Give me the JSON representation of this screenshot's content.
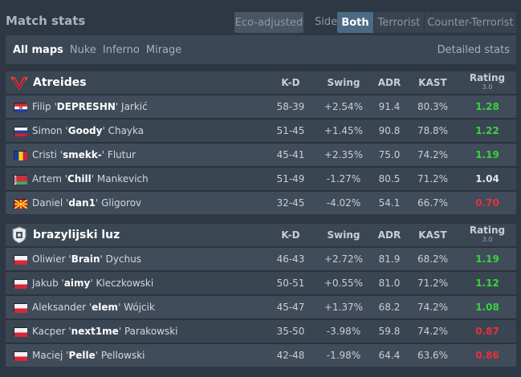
{
  "header": {
    "title": "Match stats",
    "eco_label": "Eco-adjusted",
    "side_label": "Side",
    "side_options": [
      "Both",
      "Terrorist",
      "Counter-Terrorist"
    ],
    "side_selected": "Both"
  },
  "maps": {
    "tabs": [
      "All maps",
      "Nuke",
      "Inferno",
      "Mirage"
    ],
    "selected": "All maps",
    "detailed_label": "Detailed stats"
  },
  "columns": {
    "kd": "K-D",
    "swing": "Swing",
    "adr": "ADR",
    "kast": "KAST",
    "rating": "Rating",
    "rating_version": "3.0"
  },
  "colors": {
    "positive": "#39c23b",
    "negative": "#e8404a",
    "active_tab": "#4d6a85"
  },
  "teams": [
    {
      "name": "Atreides",
      "logo": "atreides-logo",
      "players": [
        {
          "first": "Filip",
          "nick": "DEPRESHN",
          "last": "Jarkić",
          "flag": "croatia",
          "kd": "58-39",
          "swing": "+2.54%",
          "adr": "91.4",
          "kast": "80.3%",
          "rating": "1.28"
        },
        {
          "first": "Simon",
          "nick": "Goody",
          "last": "Chayka",
          "flag": "russia",
          "kd": "51-45",
          "swing": "+1.45%",
          "adr": "90.8",
          "kast": "78.8%",
          "rating": "1.22"
        },
        {
          "first": "Cristi",
          "nick": "smekk-",
          "last": "Flutur",
          "flag": "romania",
          "kd": "45-41",
          "swing": "+2.35%",
          "adr": "75.0",
          "kast": "74.2%",
          "rating": "1.19"
        },
        {
          "first": "Artem",
          "nick": "Chill",
          "last": "Mankevich",
          "flag": "belarus",
          "kd": "51-49",
          "swing": "-1.27%",
          "adr": "80.5",
          "kast": "71.2%",
          "rating": "1.04"
        },
        {
          "first": "Daniel",
          "nick": "dan1",
          "last": "Gligorov",
          "flag": "macedonia",
          "kd": "32-45",
          "swing": "-4.02%",
          "adr": "54.1",
          "kast": "66.7%",
          "rating": "0.70"
        }
      ]
    },
    {
      "name": "brazylijski luz",
      "logo": "brazylijski-luz-logo",
      "players": [
        {
          "first": "Oliwier",
          "nick": "Brain",
          "last": "Dychus",
          "flag": "poland",
          "kd": "46-43",
          "swing": "+2.72%",
          "adr": "81.9",
          "kast": "68.2%",
          "rating": "1.19"
        },
        {
          "first": "Jakub",
          "nick": "aimy",
          "last": "Kleczkowski",
          "flag": "poland",
          "kd": "50-51",
          "swing": "+0.55%",
          "adr": "81.0",
          "kast": "71.2%",
          "rating": "1.12"
        },
        {
          "first": "Aleksander",
          "nick": "elem",
          "last": "Wójcik",
          "flag": "poland",
          "kd": "45-47",
          "swing": "+1.37%",
          "adr": "68.2",
          "kast": "74.2%",
          "rating": "1.08"
        },
        {
          "first": "Kacper",
          "nick": "next1me",
          "last": "Parakowski",
          "flag": "poland",
          "kd": "35-50",
          "swing": "-3.98%",
          "adr": "59.8",
          "kast": "74.2%",
          "rating": "0.87"
        },
        {
          "first": "Maciej",
          "nick": "Pelle",
          "last": "Pellowski",
          "flag": "poland",
          "kd": "42-48",
          "swing": "-1.98%",
          "adr": "64.4",
          "kast": "63.6%",
          "rating": "0.86"
        }
      ]
    }
  ]
}
